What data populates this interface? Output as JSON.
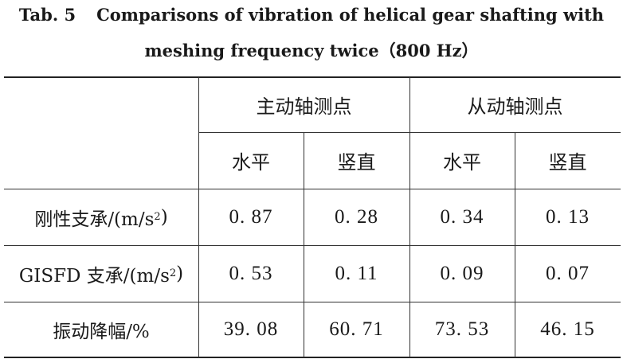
{
  "caption": {
    "label": "Tab. 5",
    "line1": "Comparisons of vibration of helical gear shafting with",
    "line2": "meshing frequency twice（800 Hz）"
  },
  "headers": {
    "group_driving": "主动轴测点",
    "group_driven": "从动轴测点",
    "horizontal": "水平",
    "vertical": "竖直"
  },
  "rows": [
    {
      "label_pre": "刚性支承/(m/s",
      "label_sup": "2",
      "label_post": ")",
      "values": [
        "0. 87",
        "0. 28",
        "0. 34",
        "0. 13"
      ]
    },
    {
      "label_pre": "GISFD 支承/(m/s",
      "label_sup": "2",
      "label_post": ")",
      "values": [
        "0. 53",
        "0. 11",
        "0. 09",
        "0. 07"
      ]
    },
    {
      "label_pre": "振动降幅/%",
      "label_sup": "",
      "label_post": "",
      "values": [
        "39. 08",
        "60. 71",
        "73. 53",
        "46. 15"
      ]
    }
  ]
}
